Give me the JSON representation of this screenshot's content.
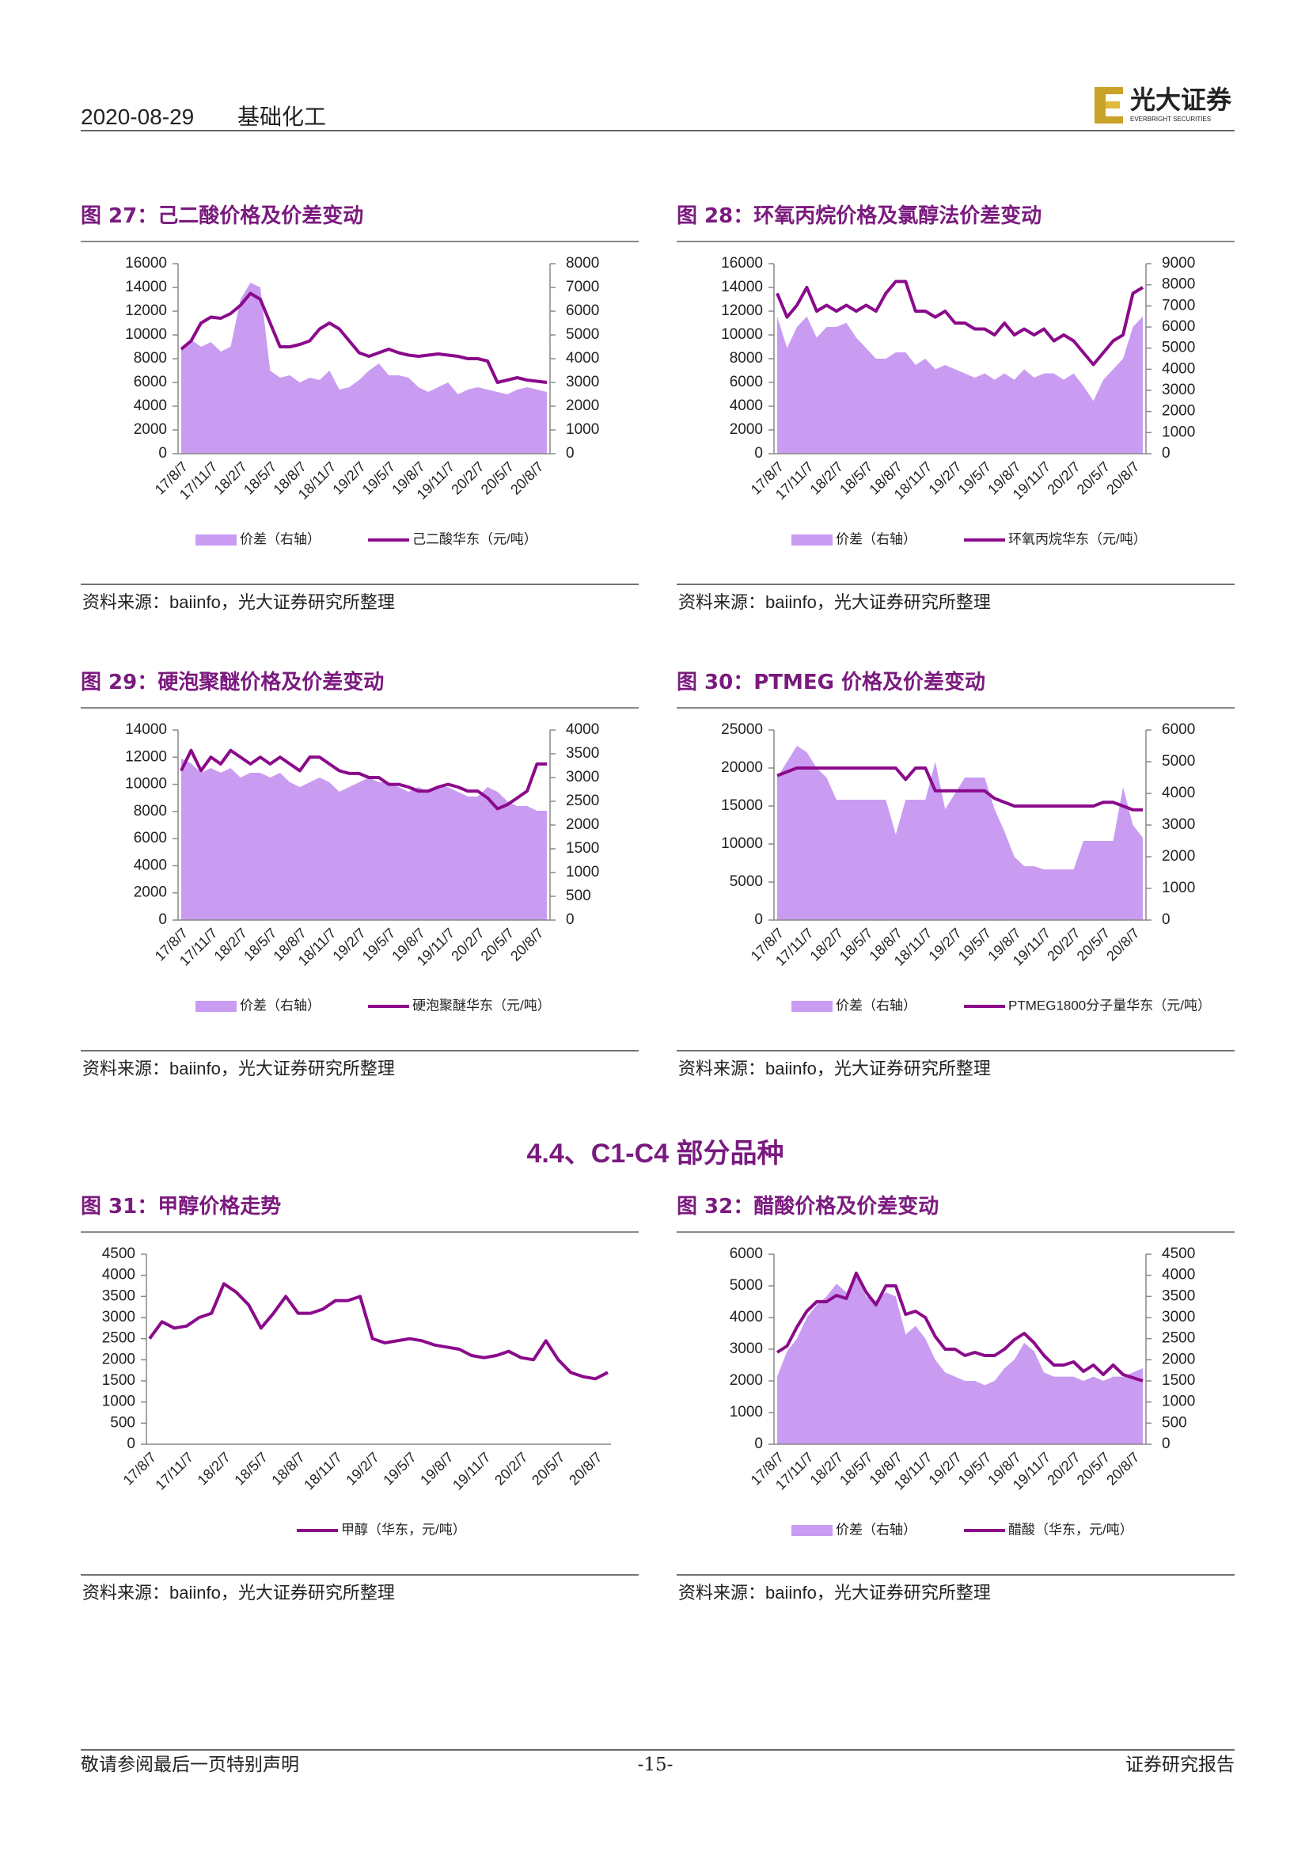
{
  "header": {
    "date": "2020-08-29",
    "sector": "基础化工",
    "logo": "光大证券",
    "logo_en": "EVERBRIGHT SECURITIES"
  },
  "section": "4.4、C1-C4 部分品种",
  "footer": {
    "left": "敬请参阅最后一页特别声明",
    "page": "-15-",
    "right": "证券研究报告"
  },
  "chart_data": [
    {
      "type": "line",
      "title": "图 27：己二酸价格及价差变动",
      "source": "资料来源：baiinfo，光大证券研究所整理",
      "categories": [
        "17/8/7",
        null,
        null,
        "17/11/7",
        null,
        null,
        "18/2/7",
        null,
        null,
        "18/5/7",
        null,
        null,
        "18/8/7",
        null,
        null,
        "18/11/7",
        null,
        null,
        "19/2/7",
        null,
        null,
        "19/5/7",
        null,
        null,
        "19/8/7",
        null,
        null,
        "19/11/7",
        null,
        null,
        "20/2/7",
        null,
        null,
        "20/5/7",
        null,
        null,
        "20/8/7",
        null
      ],
      "ylim": [
        0,
        16000
      ],
      "yticks": [
        0,
        2000,
        4000,
        6000,
        8000,
        10000,
        12000,
        14000,
        16000
      ],
      "y2lim": [
        0,
        8000
      ],
      "y2ticks": [
        0,
        1000,
        2000,
        3000,
        4000,
        5000,
        6000,
        7000,
        8000
      ],
      "series": [
        {
          "name": "价差（右轴）",
          "type": "area",
          "axis": "y2",
          "color": "#c99cf2",
          "values": [
            4500,
            4800,
            4500,
            4700,
            4300,
            4500,
            6500,
            7200,
            7000,
            3500,
            3200,
            3300,
            3000,
            3200,
            3100,
            3500,
            2700,
            2800,
            3100,
            3500,
            3800,
            3300,
            3300,
            3200,
            2800,
            2600,
            2800,
            3000,
            2500,
            2700,
            2800,
            2700,
            2600,
            2500,
            2700,
            2800,
            2700,
            2600
          ]
        },
        {
          "name": "己二酸华东（元/吨）",
          "type": "line",
          "color": "#8b0a8b",
          "values": [
            8800,
            9500,
            11000,
            11500,
            11400,
            11800,
            12500,
            13500,
            13000,
            11000,
            9000,
            9000,
            9200,
            9500,
            10500,
            11000,
            10500,
            9500,
            8500,
            8200,
            8500,
            8800,
            8500,
            8300,
            8200,
            8300,
            8400,
            8300,
            8200,
            8000,
            8000,
            7800,
            6000,
            6200,
            6400,
            6200,
            6100,
            6000
          ]
        }
      ]
    },
    {
      "type": "line",
      "title": "图 28：环氧丙烷价格及氯醇法价差变动",
      "source": "资料来源：baiinfo，光大证券研究所整理",
      "categories": [
        "17/8/7",
        null,
        null,
        "17/11/7",
        null,
        null,
        "18/2/7",
        null,
        null,
        "18/5/7",
        null,
        null,
        "18/8/7",
        null,
        null,
        "18/11/7",
        null,
        null,
        "19/2/7",
        null,
        null,
        "19/5/7",
        null,
        null,
        "19/8/7",
        null,
        null,
        "19/11/7",
        null,
        null,
        "20/2/7",
        null,
        null,
        "20/5/7",
        null,
        null,
        "20/8/7",
        null
      ],
      "ylim": [
        0,
        16000
      ],
      "yticks": [
        0,
        2000,
        4000,
        6000,
        8000,
        10000,
        12000,
        14000,
        16000
      ],
      "y2lim": [
        0,
        9000
      ],
      "y2ticks": [
        0,
        1000,
        2000,
        3000,
        4000,
        5000,
        6000,
        7000,
        8000,
        9000
      ],
      "series": [
        {
          "name": "价差（右轴）",
          "type": "area",
          "axis": "y2",
          "color": "#c99cf2",
          "values": [
            6500,
            5000,
            6000,
            6500,
            5500,
            6000,
            6000,
            6200,
            5500,
            5000,
            4500,
            4500,
            4800,
            4800,
            4200,
            4500,
            4000,
            4200,
            4000,
            3800,
            3600,
            3800,
            3500,
            3800,
            3500,
            4000,
            3600,
            3800,
            3800,
            3500,
            3800,
            3200,
            2500,
            3500,
            4000,
            4500,
            6000,
            6500
          ]
        },
        {
          "name": "环氧丙烷华东（元/吨）",
          "type": "line",
          "color": "#8b0a8b",
          "values": [
            13500,
            11500,
            12500,
            14000,
            12000,
            12500,
            12000,
            12500,
            12000,
            12500,
            12000,
            13500,
            14500,
            14500,
            12000,
            12000,
            11500,
            12000,
            11000,
            11000,
            10500,
            10500,
            10000,
            11000,
            10000,
            10500,
            10000,
            10500,
            9500,
            10000,
            9500,
            8500,
            7500,
            8500,
            9500,
            10000,
            13500,
            14000
          ]
        }
      ]
    },
    {
      "type": "line",
      "title": "图 29：硬泡聚醚价格及价差变动",
      "source": "资料来源：baiinfo，光大证券研究所整理",
      "categories": [
        "17/8/7",
        null,
        null,
        "17/11/7",
        null,
        null,
        "18/2/7",
        null,
        null,
        "18/5/7",
        null,
        null,
        "18/8/7",
        null,
        null,
        "18/11/7",
        null,
        null,
        "19/2/7",
        null,
        null,
        "19/5/7",
        null,
        null,
        "19/8/7",
        null,
        null,
        "19/11/7",
        null,
        null,
        "20/2/7",
        null,
        null,
        "20/5/7",
        null,
        null,
        "20/8/7",
        null
      ],
      "ylim": [
        0,
        14000
      ],
      "yticks": [
        0,
        2000,
        4000,
        6000,
        8000,
        10000,
        12000,
        14000
      ],
      "y2lim": [
        0,
        4000
      ],
      "y2ticks": [
        0,
        500,
        1000,
        1500,
        2000,
        2500,
        3000,
        3500,
        4000
      ],
      "series": [
        {
          "name": "价差（右轴）",
          "type": "area",
          "axis": "y2",
          "color": "#c99cf2",
          "values": [
            3400,
            3300,
            3100,
            3200,
            3100,
            3200,
            3000,
            3100,
            3100,
            3000,
            3100,
            2900,
            2800,
            2900,
            3000,
            2900,
            2700,
            2800,
            2900,
            3000,
            2900,
            2900,
            2800,
            2700,
            2800,
            2700,
            2800,
            2800,
            2700,
            2600,
            2600,
            2800,
            2700,
            2500,
            2400,
            2400,
            2300,
            2300
          ]
        },
        {
          "name": "硬泡聚醚华东（元/吨）",
          "type": "line",
          "color": "#8b0a8b",
          "values": [
            11000,
            12500,
            11000,
            12000,
            11500,
            12500,
            12000,
            11500,
            12000,
            11500,
            12000,
            11500,
            11000,
            12000,
            12000,
            11500,
            11000,
            10800,
            10800,
            10500,
            10500,
            10000,
            10000,
            9800,
            9500,
            9500,
            9800,
            10000,
            9800,
            9500,
            9500,
            9000,
            8200,
            8500,
            9000,
            9500,
            11500,
            11500
          ]
        }
      ]
    },
    {
      "type": "line",
      "title": "图 30：PTMEG 价格及价差变动",
      "source": "资料来源：baiinfo，光大证券研究所整理",
      "categories": [
        "17/8/7",
        null,
        null,
        "17/11/7",
        null,
        null,
        "18/2/7",
        null,
        null,
        "18/5/7",
        null,
        null,
        "18/8/7",
        null,
        null,
        "18/11/7",
        null,
        null,
        "19/2/7",
        null,
        null,
        "19/5/7",
        null,
        null,
        "19/8/7",
        null,
        null,
        "19/11/7",
        null,
        null,
        "20/2/7",
        null,
        null,
        "20/5/7",
        null,
        null,
        "20/8/7",
        null
      ],
      "ylim": [
        0,
        25000
      ],
      "yticks": [
        0,
        5000,
        10000,
        15000,
        20000,
        25000
      ],
      "y2lim": [
        0,
        6000
      ],
      "y2ticks": [
        0,
        1000,
        2000,
        3000,
        4000,
        5000,
        6000
      ],
      "series": [
        {
          "name": "价差（右轴）",
          "type": "area",
          "axis": "y2",
          "color": "#c99cf2",
          "values": [
            4500,
            5000,
            5500,
            5300,
            4800,
            4500,
            3800,
            3800,
            3800,
            3800,
            3800,
            3800,
            2700,
            3800,
            3800,
            3800,
            5000,
            3500,
            4000,
            4500,
            4500,
            4500,
            3500,
            2800,
            2000,
            1700,
            1700,
            1600,
            1600,
            1600,
            1600,
            2500,
            2500,
            2500,
            2500,
            4200,
            3000,
            2600
          ]
        },
        {
          "name": "PTMEG1800分子量华东（元/吨）",
          "type": "line",
          "color": "#8b0a8b",
          "values": [
            19000,
            19500,
            20000,
            20000,
            20000,
            20000,
            20000,
            20000,
            20000,
            20000,
            20000,
            20000,
            20000,
            18500,
            20000,
            20000,
            17000,
            17000,
            17000,
            17000,
            17000,
            17000,
            16000,
            15500,
            15000,
            15000,
            15000,
            15000,
            15000,
            15000,
            15000,
            15000,
            15000,
            15500,
            15500,
            15000,
            14500,
            14500
          ]
        }
      ]
    },
    {
      "type": "line",
      "title": "图 31：甲醇价格走势",
      "source": "资料来源：baiinfo，光大证券研究所整理",
      "categories": [
        "17/8/7",
        null,
        null,
        "17/11/7",
        null,
        null,
        "18/2/7",
        null,
        null,
        "18/5/7",
        null,
        null,
        "18/8/7",
        null,
        null,
        "18/11/7",
        null,
        null,
        "19/2/7",
        null,
        null,
        "19/5/7",
        null,
        null,
        "19/8/7",
        null,
        null,
        "19/11/7",
        null,
        null,
        "20/2/7",
        null,
        null,
        "20/5/7",
        null,
        null,
        "20/8/7",
        null
      ],
      "ylim": [
        0,
        4500
      ],
      "yticks": [
        0,
        500,
        1000,
        1500,
        2000,
        2500,
        3000,
        3500,
        4000,
        4500
      ],
      "series": [
        {
          "name": "甲醇（华东，元/吨）",
          "type": "line",
          "color": "#8b0a8b",
          "values": [
            2500,
            2900,
            2750,
            2800,
            3000,
            3100,
            3800,
            3600,
            3300,
            2750,
            3100,
            3500,
            3100,
            3100,
            3200,
            3400,
            3400,
            3500,
            2500,
            2400,
            2450,
            2500,
            2450,
            2350,
            2300,
            2250,
            2100,
            2050,
            2100,
            2200,
            2050,
            2000,
            2450,
            2000,
            1700,
            1600,
            1550,
            1700
          ]
        }
      ]
    },
    {
      "type": "line",
      "title": "图 32：醋酸价格及价差变动",
      "source": "资料来源：baiinfo，光大证券研究所整理",
      "categories": [
        "17/8/7",
        null,
        null,
        "17/11/7",
        null,
        null,
        "18/2/7",
        null,
        null,
        "18/5/7",
        null,
        null,
        "18/8/7",
        null,
        null,
        "18/11/7",
        null,
        null,
        "19/2/7",
        null,
        null,
        "19/5/7",
        null,
        null,
        "19/8/7",
        null,
        null,
        "19/11/7",
        null,
        null,
        "20/2/7",
        null,
        null,
        "20/5/7",
        null,
        null,
        "20/8/7",
        null
      ],
      "ylim": [
        0,
        6000
      ],
      "yticks": [
        0,
        1000,
        2000,
        3000,
        4000,
        5000,
        6000
      ],
      "y2lim": [
        0,
        4500
      ],
      "y2ticks": [
        0,
        500,
        1000,
        1500,
        2000,
        2500,
        3000,
        3500,
        4000,
        4500
      ],
      "series": [
        {
          "name": "价差（右轴）",
          "type": "area",
          "axis": "y2",
          "color": "#c99cf2",
          "values": [
            1600,
            2200,
            2500,
            3000,
            3300,
            3500,
            3800,
            3600,
            4000,
            3500,
            3400,
            3600,
            3500,
            2600,
            2800,
            2500,
            2000,
            1700,
            1600,
            1500,
            1500,
            1400,
            1500,
            1800,
            2000,
            2400,
            2200,
            1700,
            1600,
            1600,
            1600,
            1500,
            1600,
            1500,
            1600,
            1600,
            1700,
            1800
          ]
        },
        {
          "name": "醋酸（华东，元/吨）",
          "type": "line",
          "color": "#8b0a8b",
          "values": [
            2900,
            3100,
            3700,
            4200,
            4500,
            4500,
            4700,
            4600,
            5400,
            4800,
            4400,
            5000,
            5000,
            4100,
            4200,
            4000,
            3400,
            3000,
            3000,
            2800,
            2900,
            2800,
            2800,
            3000,
            3300,
            3500,
            3200,
            2800,
            2500,
            2500,
            2600,
            2300,
            2500,
            2200,
            2500,
            2200,
            2100,
            2000
          ]
        }
      ]
    }
  ]
}
